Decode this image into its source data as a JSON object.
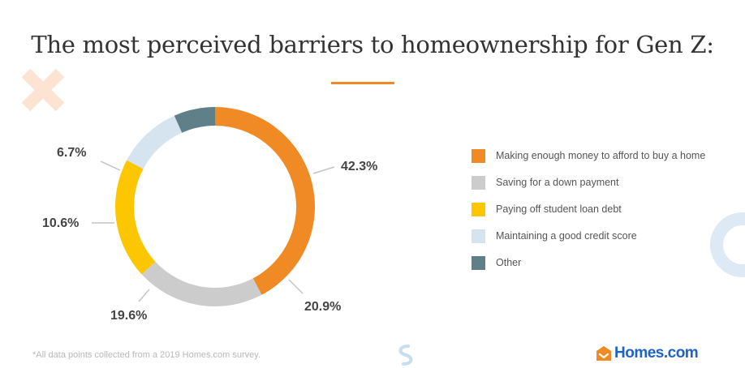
{
  "title": "The most perceived barriers to homeownership for Gen Z:",
  "footnote": "*All data points collected from a 2019 Homes.com survey.",
  "logo": {
    "text": "Homes.com",
    "icon": "house-box-icon"
  },
  "chart_data": {
    "type": "pie",
    "variant": "donut",
    "title": "The most perceived barriers to homeownership for Gen Z:",
    "categories": [
      "Making enough money to afford  to buy a home",
      "Saving for a down payment",
      "Paying off student loan debt",
      "Maintaining a good credit score",
      "Other"
    ],
    "values": [
      42.3,
      20.9,
      19.6,
      10.6,
      6.7
    ],
    "value_labels": [
      "42.3%",
      "20.9%",
      "19.6%",
      "10.6%",
      "6.7%"
    ],
    "colors": [
      "#f08a24",
      "#cccccc",
      "#fcc600",
      "#d6e4f0",
      "#5f8088"
    ],
    "legend_position": "right",
    "start": "top, clockwise"
  },
  "colors": {
    "accent": "#f08a24",
    "decor_x": "#fde4d2",
    "decor_ring": "#dde9f5",
    "logo_blue": "#1e64c8"
  }
}
